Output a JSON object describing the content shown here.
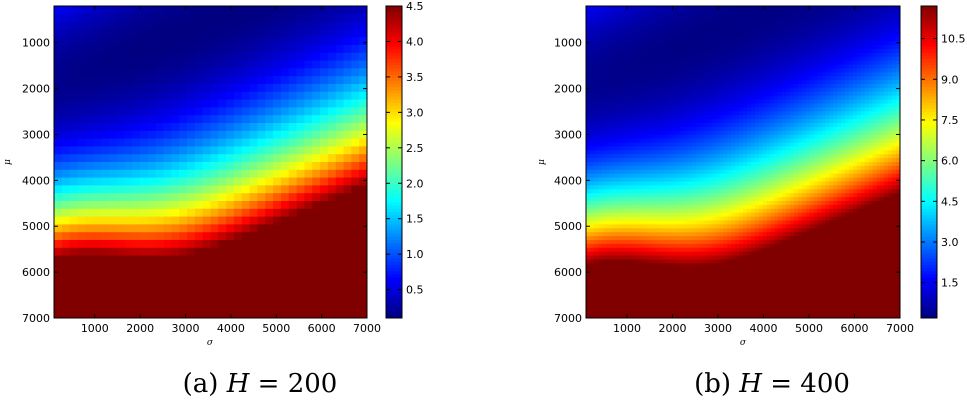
{
  "chart_data": [
    {
      "type": "heatmap",
      "xlabel": "σ",
      "ylabel": "μ",
      "xlim": [
        100,
        7000
      ],
      "ylim": [
        200,
        7000
      ],
      "x_ticks": [
        1000,
        2000,
        3000,
        4000,
        5000,
        6000,
        7000
      ],
      "y_ticks": [
        1000,
        2000,
        3000,
        4000,
        5000,
        6000,
        7000
      ],
      "grid": {
        "cols": 40,
        "rows": 40
      },
      "colormap": "jet",
      "colorbar": {
        "min": 0.1,
        "max": 4.5,
        "ticks": [
          0.5,
          1.0,
          1.5,
          2.0,
          2.5,
          3.0,
          3.5,
          4.0,
          4.5
        ]
      },
      "caption_prefix": "(a)",
      "caption_var": "H",
      "caption_value": "= 200",
      "H": 200
    },
    {
      "type": "heatmap",
      "xlabel": "σ",
      "ylabel": "μ",
      "xlim": [
        100,
        7000
      ],
      "ylim": [
        200,
        7000
      ],
      "x_ticks": [
        1000,
        2000,
        3000,
        4000,
        5000,
        6000,
        7000
      ],
      "y_ticks": [
        1000,
        2000,
        3000,
        4000,
        5000,
        6000,
        7000
      ],
      "grid": {
        "cols": 80,
        "rows": 80
      },
      "colormap": "jet",
      "colorbar": {
        "min": 0.2,
        "max": 11.7,
        "ticks": [
          1.5,
          3.0,
          4.5,
          6.0,
          7.5,
          9.0,
          10.5
        ]
      },
      "caption_prefix": "(b)",
      "caption_var": "H",
      "caption_value": "= 400",
      "H": 400
    }
  ]
}
